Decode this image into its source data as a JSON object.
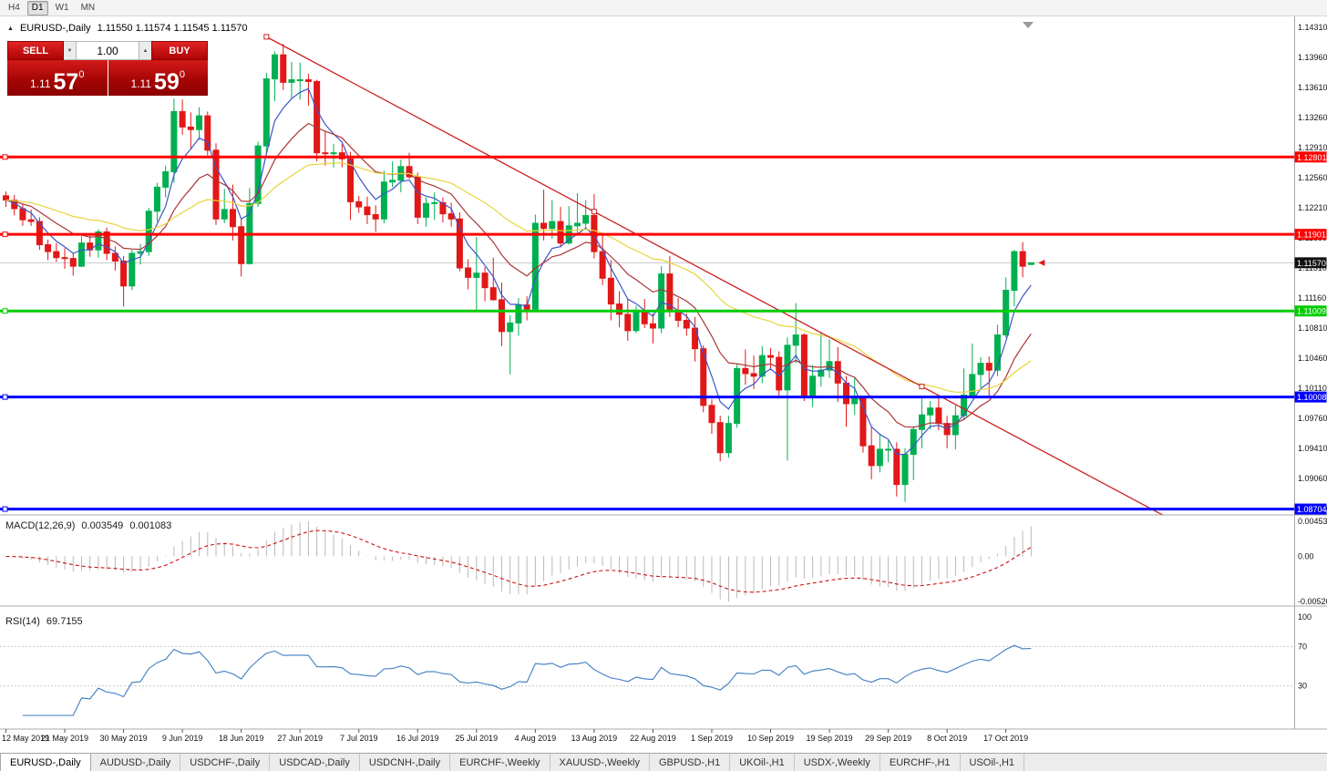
{
  "toolbar": {
    "timeframes": [
      {
        "label": "H4",
        "active": false
      },
      {
        "label": "D1",
        "active": true
      },
      {
        "label": "W1",
        "active": false
      },
      {
        "label": "MN",
        "active": false
      }
    ]
  },
  "title": {
    "symbol": "EURUSD-,Daily",
    "ohlc": "1.11550 1.11574 1.11545 1.11570"
  },
  "trade": {
    "sell": "SELL",
    "buy": "BUY",
    "volume": "1.00",
    "bid": {
      "prefix": "1.11",
      "big": "57",
      "pip": "0"
    },
    "ask": {
      "prefix": "1.11",
      "big": "59",
      "pip": "0"
    }
  },
  "axis": {
    "price_ticks": [
      "1.14310",
      "1.13960",
      "1.13610",
      "1.13260",
      "1.12910",
      "1.12560",
      "1.12210",
      "1.11860",
      "1.11510",
      "1.11160",
      "1.10810",
      "1.10460",
      "1.10110",
      "1.09760",
      "1.09410",
      "1.09060",
      "1.08710"
    ],
    "macd_ticks": [
      "0.00453",
      "0.00",
      "-0.00520"
    ],
    "rsi_ticks": [
      "100",
      "70",
      "30"
    ],
    "date_ticks": [
      {
        "bar": 0,
        "label": "12 May 2019"
      },
      {
        "bar": 7,
        "label": "21 May 2019"
      },
      {
        "bar": 14,
        "label": "30 May 2019"
      },
      {
        "bar": 21,
        "label": "9 Jun 2019"
      },
      {
        "bar": 28,
        "label": "18 Jun 2019"
      },
      {
        "bar": 35,
        "label": "27 Jun 2019"
      },
      {
        "bar": 42,
        "label": "7 Jul 2019"
      },
      {
        "bar": 49,
        "label": "16 Jul 2019"
      },
      {
        "bar": 56,
        "label": "25 Jul 2019"
      },
      {
        "bar": 63,
        "label": "4 Aug 2019"
      },
      {
        "bar": 70,
        "label": "13 Aug 2019"
      },
      {
        "bar": 77,
        "label": "22 Aug 2019"
      },
      {
        "bar": 84,
        "label": "1 Sep 2019"
      },
      {
        "bar": 91,
        "label": "10 Sep 2019"
      },
      {
        "bar": 98,
        "label": "19 Sep 2019"
      },
      {
        "bar": 105,
        "label": "29 Sep 2019"
      },
      {
        "bar": 112,
        "label": "8 Oct 2019"
      },
      {
        "bar": 119,
        "label": "17 Oct 2019"
      }
    ]
  },
  "chart_data": {
    "type": "candlestick",
    "symbol": "EURUSD",
    "timeframe": "Daily",
    "candles": [
      [
        1.1235,
        1.124,
        1.1222,
        1.123
      ],
      [
        1.123,
        1.1236,
        1.1212,
        1.122
      ],
      [
        1.122,
        1.1226,
        1.12,
        1.1207
      ],
      [
        1.1207,
        1.1219,
        1.12,
        1.1205
      ],
      [
        1.1205,
        1.121,
        1.1172,
        1.1178
      ],
      [
        1.1178,
        1.1184,
        1.116,
        1.117
      ],
      [
        1.117,
        1.118,
        1.1158,
        1.1163
      ],
      [
        1.1163,
        1.1174,
        1.115,
        1.1162
      ],
      [
        1.1162,
        1.1168,
        1.1142,
        1.1153
      ],
      [
        1.1153,
        1.1188,
        1.1152,
        1.118
      ],
      [
        1.118,
        1.119,
        1.1164,
        1.1172
      ],
      [
        1.1172,
        1.1196,
        1.1163,
        1.1193
      ],
      [
        1.1193,
        1.1198,
        1.116,
        1.1168
      ],
      [
        1.1168,
        1.1176,
        1.1148,
        1.1159
      ],
      [
        1.1159,
        1.1165,
        1.1106,
        1.113
      ],
      [
        1.113,
        1.1172,
        1.1125,
        1.1168
      ],
      [
        1.1168,
        1.1179,
        1.1155,
        1.117
      ],
      [
        1.117,
        1.1221,
        1.1165,
        1.1217
      ],
      [
        1.1217,
        1.125,
        1.1205,
        1.1245
      ],
      [
        1.1245,
        1.127,
        1.1233,
        1.1263
      ],
      [
        1.1263,
        1.1348,
        1.125,
        1.1333
      ],
      [
        1.1333,
        1.1347,
        1.1306,
        1.1315
      ],
      [
        1.1315,
        1.1332,
        1.1289,
        1.1312
      ],
      [
        1.1312,
        1.1338,
        1.13,
        1.1328
      ],
      [
        1.1328,
        1.1333,
        1.1282,
        1.1288
      ],
      [
        1.1288,
        1.1296,
        1.1201,
        1.1208
      ],
      [
        1.1208,
        1.1243,
        1.1203,
        1.1219
      ],
      [
        1.1219,
        1.1248,
        1.1183,
        1.1199
      ],
      [
        1.1199,
        1.1208,
        1.1141,
        1.1156
      ],
      [
        1.1156,
        1.1244,
        1.1155,
        1.1226
      ],
      [
        1.1226,
        1.1298,
        1.1222,
        1.1293
      ],
      [
        1.1293,
        1.1378,
        1.1285,
        1.1371
      ],
      [
        1.1371,
        1.1403,
        1.1345,
        1.1399
      ],
      [
        1.1399,
        1.1412,
        1.1358,
        1.1367
      ],
      [
        1.1367,
        1.1391,
        1.1348,
        1.137
      ],
      [
        1.137,
        1.139,
        1.1347,
        1.137
      ],
      [
        1.137,
        1.1377,
        1.134,
        1.1368
      ],
      [
        1.1368,
        1.137,
        1.1275,
        1.1285
      ],
      [
        1.1285,
        1.131,
        1.127,
        1.1284
      ],
      [
        1.1284,
        1.1295,
        1.1268,
        1.1285
      ],
      [
        1.1285,
        1.1295,
        1.1268,
        1.1278
      ],
      [
        1.1278,
        1.1286,
        1.1207,
        1.1228
      ],
      [
        1.1228,
        1.1235,
        1.1215,
        1.1222
      ],
      [
        1.1222,
        1.1234,
        1.1202,
        1.1213
      ],
      [
        1.1213,
        1.1224,
        1.1193,
        1.1208
      ],
      [
        1.1208,
        1.1264,
        1.1203,
        1.1251
      ],
      [
        1.1251,
        1.1275,
        1.1245,
        1.1253
      ],
      [
        1.1253,
        1.1277,
        1.1239,
        1.1269
      ],
      [
        1.1269,
        1.1285,
        1.1255,
        1.1257
      ],
      [
        1.1257,
        1.1262,
        1.1202,
        1.121
      ],
      [
        1.121,
        1.1233,
        1.1199,
        1.1226
      ],
      [
        1.1226,
        1.1239,
        1.1207,
        1.1227
      ],
      [
        1.1227,
        1.1233,
        1.1204,
        1.1214
      ],
      [
        1.1214,
        1.1227,
        1.1199,
        1.1208
      ],
      [
        1.1208,
        1.1216,
        1.1147,
        1.1151
      ],
      [
        1.1151,
        1.1161,
        1.1126,
        1.114
      ],
      [
        1.114,
        1.1187,
        1.1101,
        1.1145
      ],
      [
        1.1145,
        1.1152,
        1.1112,
        1.1128
      ],
      [
        1.1128,
        1.1163,
        1.1113,
        1.1114
      ],
      [
        1.1114,
        1.1134,
        1.106,
        1.1077
      ],
      [
        1.1077,
        1.1096,
        1.1027,
        1.1087
      ],
      [
        1.1087,
        1.1116,
        1.1072,
        1.1108
      ],
      [
        1.1108,
        1.1118,
        1.109,
        1.1103
      ],
      [
        1.1103,
        1.1213,
        1.11,
        1.1203
      ],
      [
        1.1203,
        1.1242,
        1.1183,
        1.1197
      ],
      [
        1.1197,
        1.123,
        1.1185,
        1.1205
      ],
      [
        1.1205,
        1.1222,
        1.1175,
        1.118
      ],
      [
        1.118,
        1.1223,
        1.1178,
        1.12
      ],
      [
        1.12,
        1.1238,
        1.1189,
        1.1203
      ],
      [
        1.1203,
        1.123,
        1.1195,
        1.1212
      ],
      [
        1.1212,
        1.1237,
        1.1162,
        1.117
      ],
      [
        1.117,
        1.1192,
        1.1131,
        1.1139
      ],
      [
        1.1139,
        1.116,
        1.109,
        1.1109
      ],
      [
        1.1109,
        1.1124,
        1.1082,
        1.1097
      ],
      [
        1.1097,
        1.1114,
        1.1066,
        1.1078
      ],
      [
        1.1078,
        1.1107,
        1.1075,
        1.1099
      ],
      [
        1.1099,
        1.1115,
        1.1081,
        1.1086
      ],
      [
        1.1086,
        1.1098,
        1.1063,
        1.1081
      ],
      [
        1.1081,
        1.1153,
        1.1075,
        1.1144
      ],
      [
        1.1144,
        1.1165,
        1.1094,
        1.11
      ],
      [
        1.11,
        1.1116,
        1.1082,
        1.109
      ],
      [
        1.109,
        1.1098,
        1.1072,
        1.1081
      ],
      [
        1.1081,
        1.1094,
        1.1042,
        1.1057
      ],
      [
        1.1057,
        1.1061,
        1.0983,
        1.0991
      ],
      [
        1.0991,
        1.0998,
        1.0958,
        1.0971
      ],
      [
        1.0971,
        1.0979,
        1.0926,
        1.0936
      ],
      [
        1.0936,
        1.0979,
        1.093,
        1.097
      ],
      [
        1.097,
        1.1039,
        1.0965,
        1.1034
      ],
      [
        1.1034,
        1.1056,
        1.1015,
        1.1028
      ],
      [
        1.1028,
        1.1049,
        1.101,
        1.1025
      ],
      [
        1.1025,
        1.106,
        1.1017,
        1.1049
      ],
      [
        1.1049,
        1.1058,
        1.1032,
        1.1047
      ],
      [
        1.1047,
        1.1054,
        1.0999,
        1.1009
      ],
      [
        1.1009,
        1.107,
        1.0927,
        1.1061
      ],
      [
        1.1061,
        1.111,
        1.104,
        1.1073
      ],
      [
        1.1073,
        1.1075,
        1.0996,
        1.1003
      ],
      [
        1.1003,
        1.1038,
        1.0989,
        1.1025
      ],
      [
        1.1025,
        1.1076,
        1.1013,
        1.1032
      ],
      [
        1.1032,
        1.1068,
        1.1023,
        1.1042
      ],
      [
        1.1042,
        1.1059,
        1.0995,
        1.1017
      ],
      [
        1.1017,
        1.1025,
        1.0966,
        1.0993
      ],
      [
        1.0993,
        1.1024,
        1.098,
        1.0999
      ],
      [
        1.0999,
        1.1,
        1.0936,
        1.0944
      ],
      [
        1.0944,
        1.0966,
        1.0905,
        1.0921
      ],
      [
        1.0921,
        1.0958,
        1.0913,
        1.094
      ],
      [
        1.094,
        1.095,
        1.0925,
        1.094
      ],
      [
        1.094,
        1.0948,
        1.0885,
        1.0899
      ],
      [
        1.0899,
        1.0941,
        1.0879,
        1.0934
      ],
      [
        1.0934,
        1.0967,
        1.0904,
        1.0963
      ],
      [
        1.0963,
        1.0999,
        1.0941,
        1.098
      ],
      [
        1.098,
        1.0996,
        1.0963,
        1.0988
      ],
      [
        1.0988,
        1.1,
        1.0962,
        1.097
      ],
      [
        1.097,
        1.0979,
        1.0941,
        1.0957
      ],
      [
        1.0957,
        1.0991,
        1.094,
        1.0979
      ],
      [
        1.0979,
        1.1034,
        1.0975,
        1.1003
      ],
      [
        1.1003,
        1.1063,
        1.1002,
        1.1027
      ],
      [
        1.1027,
        1.1047,
        1.1012,
        1.104
      ],
      [
        1.104,
        1.1048,
        1.1001,
        1.1032
      ],
      [
        1.1032,
        1.1085,
        1.1025,
        1.1073
      ],
      [
        1.1073,
        1.114,
        1.107,
        1.1125
      ],
      [
        1.1125,
        1.1172,
        1.1106,
        1.117
      ],
      [
        1.117,
        1.1181,
        1.114,
        1.1153
      ],
      [
        1.1155,
        1.11574,
        1.11545,
        1.1157
      ]
    ],
    "moving_averages": [
      {
        "period": 5,
        "color": "#3c55c8"
      },
      {
        "period": 13,
        "color": "#a93636"
      },
      {
        "period": 34,
        "color": "#e7d43b"
      }
    ],
    "macd": {
      "name": "MACD(12,26,9)",
      "main_value": "0.003549",
      "signal_value": "0.001083",
      "fast": 12,
      "slow": 26,
      "smooth": 9,
      "hist_color": "#b9b9b9",
      "signal_color": "#cc1111"
    },
    "rsi": {
      "name": "RSI(14)",
      "value": "69.7155",
      "period": 14,
      "color": "#3f7cc1",
      "levels": [
        70,
        30
      ]
    }
  },
  "lines": {
    "horizontal": [
      {
        "price": 1.12801,
        "label": "1.12801",
        "color": "#ff0000",
        "width": 3
      },
      {
        "price": 1.11901,
        "label": "1.11901",
        "color": "#ff0000",
        "width": 3
      },
      {
        "price": 1.11009,
        "label": "1.11009",
        "color": "#00cc00",
        "width": 3
      },
      {
        "price": 1.10008,
        "label": "1.10008",
        "color": "#0000ff",
        "width": 3
      },
      {
        "price": 1.08704,
        "label": "1.08704",
        "color": "#0000ff",
        "width": 3
      }
    ],
    "current": {
      "price": 1.1157,
      "label": "1.11570",
      "box_color": "#111111"
    },
    "trend": {
      "from_bar": 31,
      "from_price": 1.142,
      "to_bar": 109,
      "to_price": 1.1013,
      "color": "#cc2222",
      "ray": true
    }
  },
  "colors": {
    "up": "#00b050",
    "down": "#e21717",
    "background": "#ffffff"
  },
  "markers": {
    "arrow_color": "#e21717"
  },
  "tabs": [
    {
      "label": "EURUSD-,Daily",
      "active": true
    },
    {
      "label": "AUDUSD-,Daily",
      "active": false
    },
    {
      "label": "USDCHF-,Daily",
      "active": false
    },
    {
      "label": "USDCAD-,Daily",
      "active": false
    },
    {
      "label": "USDCNH-,Daily",
      "active": false
    },
    {
      "label": "EURCHF-,Weekly",
      "active": false
    },
    {
      "label": "XAUUSD-,Weekly",
      "active": false
    },
    {
      "label": "GBPUSD-,H1",
      "active": false
    },
    {
      "label": "UKOil-,H1",
      "active": false
    },
    {
      "label": "USDX-,Weekly",
      "active": false
    },
    {
      "label": "EURCHF-,H1",
      "active": false
    },
    {
      "label": "USOil-,H1",
      "active": false
    }
  ]
}
